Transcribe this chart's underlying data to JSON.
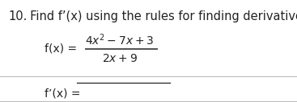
{
  "title_num": "10.",
  "title_text": "  Find f’(x) using the rules for finding derivatives",
  "fx_label": "f(x) = ",
  "numerator": "$4x^2 - 7x + 3$",
  "denominator": "$2x + 9$",
  "fpx_label": "f’(x) = ",
  "background_color": "#ffffff",
  "text_color": "#222222",
  "line_color": "#bbbbbb",
  "title_fontsize": 10.5,
  "body_fontsize": 10.0,
  "fig_width": 3.67,
  "fig_height": 1.27,
  "dpi": 100
}
